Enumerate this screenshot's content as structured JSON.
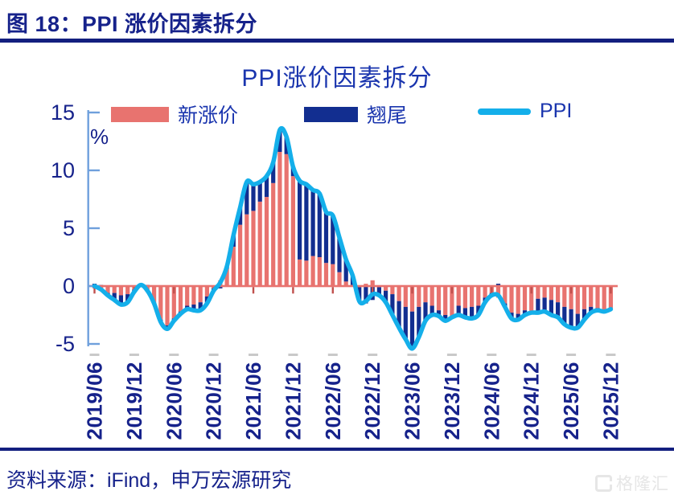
{
  "header": {
    "title": "图 18：PPI 涨价因素拆分"
  },
  "legend": {
    "new_label": "新涨价",
    "carry_label": "翘尾",
    "ppi_label": "PPI"
  },
  "footer": {
    "source": "资料来源：iFind，申万宏源研究",
    "watermark": "格隆汇"
  },
  "chart_data": {
    "type": "bar",
    "subtype": "stacked monthly columns with smoothed line overlay",
    "title": "PPI涨价因素拆分",
    "xlabel": "",
    "ylabel": "%",
    "ylim": [
      -5,
      15
    ],
    "y_ticks": [
      15,
      10,
      5,
      0,
      -5
    ],
    "grid": false,
    "legend_position": "top",
    "x_tick_labels": [
      "2019/06",
      "2019/12",
      "2020/06",
      "2020/12",
      "2021/06",
      "2021/12",
      "2022/06",
      "2022/12",
      "2023/06",
      "2023/12",
      "2024/06",
      "2024/12",
      "2025/06",
      "2025/12"
    ],
    "x": [
      "2019/06",
      "2019/07",
      "2019/08",
      "2019/09",
      "2019/10",
      "2019/11",
      "2019/12",
      "2020/01",
      "2020/02",
      "2020/03",
      "2020/04",
      "2020/05",
      "2020/06",
      "2020/07",
      "2020/08",
      "2020/09",
      "2020/10",
      "2020/11",
      "2020/12",
      "2021/01",
      "2021/02",
      "2021/03",
      "2021/04",
      "2021/05",
      "2021/06",
      "2021/07",
      "2021/08",
      "2021/09",
      "2021/10",
      "2021/11",
      "2021/12",
      "2022/01",
      "2022/02",
      "2022/03",
      "2022/04",
      "2022/05",
      "2022/06",
      "2022/07",
      "2022/08",
      "2022/09",
      "2022/10",
      "2022/11",
      "2022/12",
      "2023/01",
      "2023/02",
      "2023/03",
      "2023/04",
      "2023/05",
      "2023/06",
      "2023/07",
      "2023/08",
      "2023/09",
      "2023/10",
      "2023/11",
      "2023/12",
      "2024/01",
      "2024/02",
      "2024/03",
      "2024/04",
      "2024/05",
      "2024/06",
      "2024/07",
      "2024/08",
      "2024/09",
      "2024/10",
      "2024/11",
      "2024/12",
      "2025/01",
      "2025/02",
      "2025/03",
      "2025/04",
      "2025/05",
      "2025/06",
      "2025/07",
      "2025/08",
      "2025/09",
      "2025/10",
      "2025/11",
      "2025/12"
    ],
    "series": [
      {
        "name": "新涨价",
        "kind": "bar",
        "color": "#E8736F",
        "values": [
          -0.2,
          -0.4,
          -0.6,
          -0.6,
          -0.8,
          -0.7,
          -0.3,
          0.1,
          -0.5,
          -1.5,
          -2.9,
          -3.4,
          -2.8,
          -2.2,
          -1.7,
          -1.6,
          -1.4,
          -0.9,
          -0.2,
          0.5,
          1.5,
          3.4,
          5.3,
          6.2,
          6.5,
          7.3,
          7.7,
          8.9,
          11.6,
          11.4,
          9.5,
          2.3,
          2.2,
          2.6,
          2.5,
          2.0,
          1.9,
          1.2,
          0.4,
          0.1,
          -0.1,
          0.2,
          0.5,
          -0.1,
          -0.4,
          -0.7,
          -1.3,
          -1.8,
          -2.2,
          -1.8,
          -1.4,
          -1.7,
          -2.1,
          -2.5,
          -2.7,
          -1.7,
          -1.9,
          -1.8,
          -1.7,
          -1.0,
          -0.6,
          -1.0,
          -1.5,
          -2.3,
          -2.4,
          -2.1,
          -2.3,
          -1.1,
          -1.0,
          -1.2,
          -1.4,
          -1.8,
          -2.0,
          -2.4,
          -2.0,
          -1.8,
          -1.9,
          -2.1,
          -2.0
        ]
      },
      {
        "name": "翘尾",
        "kind": "bar",
        "color": "#122E90",
        "values": [
          0.2,
          0.1,
          -0.2,
          -0.6,
          -0.8,
          -0.7,
          -0.2,
          0.0,
          0.1,
          0.0,
          -0.2,
          -0.3,
          -0.2,
          -0.2,
          -0.3,
          -0.5,
          -0.7,
          -0.6,
          -0.2,
          -0.2,
          0.2,
          1.0,
          1.5,
          2.8,
          2.3,
          1.7,
          1.8,
          1.8,
          1.9,
          1.5,
          0.8,
          6.8,
          6.6,
          5.7,
          5.5,
          4.4,
          4.2,
          3.0,
          1.9,
          0.8,
          -1.2,
          -1.5,
          -1.2,
          -0.7,
          -1.0,
          -1.8,
          -2.3,
          -2.8,
          -3.2,
          -2.6,
          -1.6,
          -0.8,
          -0.5,
          -0.5,
          0.0,
          -0.8,
          -0.8,
          -1.0,
          -0.8,
          -0.4,
          -0.2,
          0.2,
          -0.3,
          -0.5,
          -0.5,
          -0.4,
          0.0,
          -1.2,
          -1.2,
          -1.3,
          -1.3,
          -1.5,
          -1.6,
          -1.2,
          -0.9,
          -0.5,
          -0.2,
          -0.1,
          0.0
        ]
      },
      {
        "name": "PPI",
        "kind": "line",
        "color": "#14AFEA",
        "values": [
          0.0,
          -0.3,
          -0.8,
          -1.2,
          -1.6,
          -1.4,
          -0.5,
          0.1,
          -0.4,
          -1.5,
          -3.1,
          -3.7,
          -3.0,
          -2.4,
          -2.0,
          -2.1,
          -2.1,
          -1.5,
          -0.4,
          0.3,
          1.7,
          4.4,
          6.8,
          9.0,
          8.8,
          9.0,
          9.5,
          10.7,
          13.5,
          12.9,
          10.3,
          9.1,
          8.8,
          8.3,
          8.0,
          6.4,
          6.1,
          4.2,
          2.3,
          0.9,
          -1.3,
          -1.3,
          -0.7,
          -0.8,
          -1.4,
          -2.5,
          -3.6,
          -4.6,
          -5.4,
          -4.4,
          -3.0,
          -2.5,
          -2.6,
          -3.0,
          -2.7,
          -2.5,
          -2.7,
          -2.8,
          -2.5,
          -1.4,
          -0.8,
          -0.8,
          -1.8,
          -2.8,
          -2.9,
          -2.5,
          -2.3,
          -2.3,
          -2.2,
          -2.5,
          -2.7,
          -3.3,
          -3.6,
          -3.6,
          -2.9,
          -2.3,
          -2.1,
          -2.2,
          -2.0
        ]
      }
    ],
    "colors": {
      "new_bar": "#E8736F",
      "carryover_bar": "#122E90",
      "ppi_line": "#14AFEA",
      "y_axis_line": "#6FA0DC",
      "zero_axis_line": "#E8736F",
      "zero_axis_tick": "#C0504D",
      "category_tick": "#C9C9C9",
      "text_navy": "#16228B",
      "title_blue": "#1A35AE"
    }
  }
}
